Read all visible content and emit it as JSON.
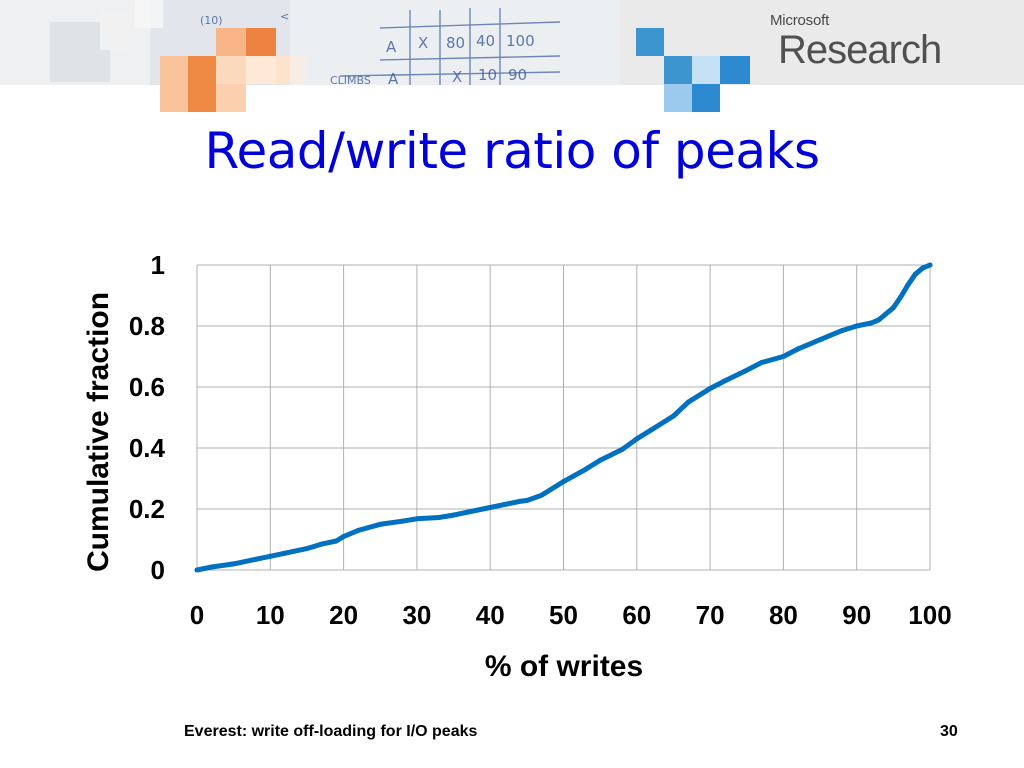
{
  "slide": {
    "title": "Read/write ratio of peaks",
    "footer": "Everest: write off-loading for I/O peaks",
    "page_number": "30"
  },
  "brand": {
    "company": "Microsoft",
    "division": "Research"
  },
  "colors": {
    "title": "#0000dd",
    "line": "#0070c0",
    "grid": "#b0b0b0"
  },
  "chart_data": {
    "type": "line",
    "xlabel": "% of writes",
    "ylabel": "Cumulative fraction",
    "xlim": [
      0,
      100
    ],
    "ylim": [
      0,
      1
    ],
    "xticks": [
      "0",
      "10",
      "20",
      "30",
      "40",
      "50",
      "60",
      "70",
      "80",
      "90",
      "100"
    ],
    "yticks": [
      "0",
      "0.2",
      "0.4",
      "0.6",
      "0.8",
      "1"
    ],
    "grid": true,
    "legend": "none",
    "series": [
      {
        "x": [
          0,
          2,
          5,
          8,
          10,
          12,
          15,
          17,
          19,
          20,
          22,
          25,
          28,
          30,
          33,
          35,
          38,
          40,
          42,
          44,
          45,
          47,
          50,
          53,
          55,
          58,
          60,
          62,
          65,
          67,
          70,
          72,
          75,
          77,
          80,
          82,
          85,
          88,
          90,
          92,
          93,
          95,
          96,
          97,
          98,
          99,
          100
        ],
        "y": [
          0,
          0.01,
          0.02,
          0.035,
          0.045,
          0.055,
          0.07,
          0.085,
          0.095,
          0.11,
          0.13,
          0.15,
          0.16,
          0.168,
          0.172,
          0.18,
          0.195,
          0.205,
          0.215,
          0.225,
          0.228,
          0.245,
          0.29,
          0.33,
          0.36,
          0.395,
          0.43,
          0.46,
          0.505,
          0.55,
          0.595,
          0.62,
          0.655,
          0.68,
          0.7,
          0.725,
          0.755,
          0.785,
          0.8,
          0.81,
          0.82,
          0.86,
          0.895,
          0.935,
          0.97,
          0.99,
          1.0
        ]
      }
    ]
  }
}
